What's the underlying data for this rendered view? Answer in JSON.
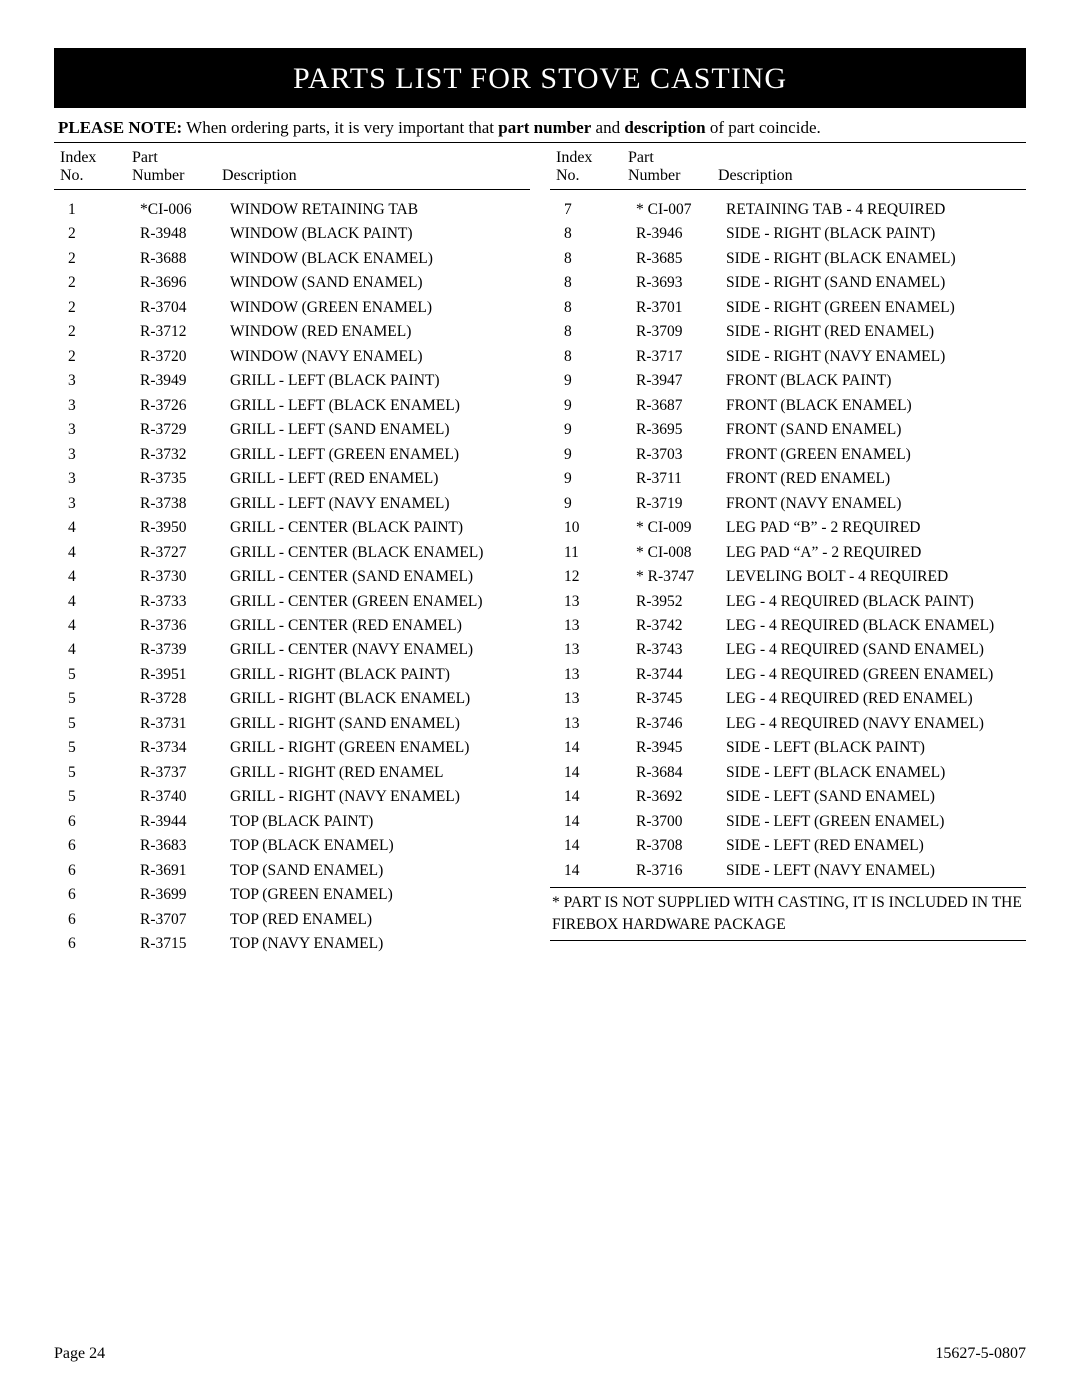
{
  "title": "PARTS LIST FOR STOVE CASTING",
  "note": {
    "prefix_bold": "PLEASE NOTE:",
    "mid1": " When ordering parts, it is very important that ",
    "bold1": "part number",
    "mid2": " and ",
    "bold2": "description",
    "suffix": " of part coincide."
  },
  "headers": {
    "index_l1": "Index",
    "index_l2": "No.",
    "part_l1": "Part",
    "part_l2": "Number",
    "desc": "Description"
  },
  "left_rows": [
    {
      "idx": "1",
      "part": "*CI-006",
      "desc": "WINDOW RETAINING TAB"
    },
    {
      "idx": "2",
      "part": "R-3948",
      "desc": "WINDOW (BLACK PAINT)"
    },
    {
      "idx": "2",
      "part": "R-3688",
      "desc": "WINDOW (BLACK ENAMEL)"
    },
    {
      "idx": "2",
      "part": "R-3696",
      "desc": "WINDOW (SAND ENAMEL)"
    },
    {
      "idx": "2",
      "part": "R-3704",
      "desc": "WINDOW (GREEN ENAMEL)"
    },
    {
      "idx": "2",
      "part": "R-3712",
      "desc": "WINDOW (RED ENAMEL)"
    },
    {
      "idx": "2",
      "part": "R-3720",
      "desc": "WINDOW (NAVY ENAMEL)"
    },
    {
      "idx": "3",
      "part": "R-3949",
      "desc": "GRILL - LEFT (BLACK PAINT)"
    },
    {
      "idx": "3",
      "part": "R-3726",
      "desc": "GRILL - LEFT (BLACK ENAMEL)"
    },
    {
      "idx": "3",
      "part": "R-3729",
      "desc": "GRILL - LEFT (SAND ENAMEL)"
    },
    {
      "idx": "3",
      "part": "R-3732",
      "desc": "GRILL - LEFT (GREEN ENAMEL)"
    },
    {
      "idx": "3",
      "part": "R-3735",
      "desc": "GRILL - LEFT (RED ENAMEL)"
    },
    {
      "idx": "3",
      "part": "R-3738",
      "desc": "GRILL - LEFT (NAVY ENAMEL)"
    },
    {
      "idx": "4",
      "part": "R-3950",
      "desc": "GRILL - CENTER (BLACK PAINT)"
    },
    {
      "idx": "4",
      "part": "R-3727",
      "desc": "GRILL - CENTER (BLACK ENAMEL)"
    },
    {
      "idx": "4",
      "part": "R-3730",
      "desc": "GRILL - CENTER (SAND ENAMEL)"
    },
    {
      "idx": "4",
      "part": "R-3733",
      "desc": "GRILL - CENTER (GREEN ENAMEL)"
    },
    {
      "idx": "4",
      "part": "R-3736",
      "desc": "GRILL - CENTER (RED ENAMEL)"
    },
    {
      "idx": "4",
      "part": "R-3739",
      "desc": "GRILL - CENTER (NAVY ENAMEL)"
    },
    {
      "idx": "5",
      "part": "R-3951",
      "desc": "GRILL - RIGHT (BLACK PAINT)"
    },
    {
      "idx": "5",
      "part": "R-3728",
      "desc": "GRILL - RIGHT (BLACK ENAMEL)"
    },
    {
      "idx": "5",
      "part": "R-3731",
      "desc": "GRILL - RIGHT (SAND ENAMEL)"
    },
    {
      "idx": "5",
      "part": "R-3734",
      "desc": "GRILL - RIGHT (GREEN ENAMEL)"
    },
    {
      "idx": "5",
      "part": "R-3737",
      "desc": "GRILL - RIGHT (RED ENAMEL"
    },
    {
      "idx": "5",
      "part": "R-3740",
      "desc": "GRILL - RIGHT (NAVY ENAMEL)"
    },
    {
      "idx": "6",
      "part": "R-3944",
      "desc": "TOP (BLACK PAINT)"
    },
    {
      "idx": "6",
      "part": "R-3683",
      "desc": "TOP (BLACK ENAMEL)"
    },
    {
      "idx": "6",
      "part": "R-3691",
      "desc": "TOP (SAND ENAMEL)"
    },
    {
      "idx": "6",
      "part": "R-3699",
      "desc": "TOP (GREEN ENAMEL)"
    },
    {
      "idx": "6",
      "part": "R-3707",
      "desc": "TOP (RED ENAMEL)"
    },
    {
      "idx": "6",
      "part": "R-3715",
      "desc": "TOP (NAVY ENAMEL)"
    }
  ],
  "right_rows": [
    {
      "idx": "7",
      "part": "* CI-007",
      "desc": "RETAINING TAB - 4 REQUIRED"
    },
    {
      "idx": "8",
      "part": "R-3946",
      "desc": "SIDE - RIGHT (BLACK PAINT)"
    },
    {
      "idx": "8",
      "part": "R-3685",
      "desc": "SIDE - RIGHT (BLACK ENAMEL)"
    },
    {
      "idx": "8",
      "part": "R-3693",
      "desc": "SIDE - RIGHT (SAND ENAMEL)"
    },
    {
      "idx": "8",
      "part": "R-3701",
      "desc": "SIDE - RIGHT (GREEN ENAMEL)"
    },
    {
      "idx": "8",
      "part": "R-3709",
      "desc": "SIDE - RIGHT (RED ENAMEL)"
    },
    {
      "idx": "8",
      "part": "R-3717",
      "desc": "SIDE - RIGHT (NAVY ENAMEL)"
    },
    {
      "idx": "9",
      "part": "R-3947",
      "desc": "FRONT (BLACK PAINT)"
    },
    {
      "idx": "9",
      "part": "R-3687",
      "desc": "FRONT (BLACK ENAMEL)"
    },
    {
      "idx": "9",
      "part": "R-3695",
      "desc": "FRONT (SAND ENAMEL)"
    },
    {
      "idx": "9",
      "part": "R-3703",
      "desc": "FRONT (GREEN ENAMEL)"
    },
    {
      "idx": "9",
      "part": "R-3711",
      "desc": "FRONT (RED ENAMEL)"
    },
    {
      "idx": "9",
      "part": "R-3719",
      "desc": "FRONT (NAVY ENAMEL)"
    },
    {
      "idx": "10",
      "part": "* CI-009",
      "desc": "LEG PAD “B” - 2 REQUIRED"
    },
    {
      "idx": "11",
      "part": "* CI-008",
      "desc": "LEG PAD “A” - 2 REQUIRED"
    },
    {
      "idx": "12",
      "part": "* R-3747",
      "desc": "LEVELING BOLT - 4 REQUIRED"
    },
    {
      "idx": "13",
      "part": "R-3952",
      "desc": "LEG - 4 REQUIRED (BLACK PAINT)"
    },
    {
      "idx": "13",
      "part": "R-3742",
      "desc": "LEG - 4 REQUIRED (BLACK ENAMEL)"
    },
    {
      "idx": "13",
      "part": "R-3743",
      "desc": "LEG - 4 REQUIRED (SAND ENAMEL)"
    },
    {
      "idx": "13",
      "part": "R-3744",
      "desc": "LEG - 4 REQUIRED (GREEN ENAMEL)"
    },
    {
      "idx": "13",
      "part": "R-3745",
      "desc": "LEG - 4 REQUIRED (RED ENAMEL)"
    },
    {
      "idx": "13",
      "part": "R-3746",
      "desc": "LEG - 4 REQUIRED (NAVY ENAMEL)"
    },
    {
      "idx": "14",
      "part": "R-3945",
      "desc": "SIDE - LEFT (BLACK PAINT)"
    },
    {
      "idx": "14",
      "part": "R-3684",
      "desc": "SIDE - LEFT (BLACK ENAMEL)"
    },
    {
      "idx": "14",
      "part": "R-3692",
      "desc": "SIDE - LEFT (SAND ENAMEL)"
    },
    {
      "idx": "14",
      "part": "R-3700",
      "desc": "SIDE - LEFT (GREEN ENAMEL)"
    },
    {
      "idx": "14",
      "part": "R-3708",
      "desc": "SIDE - LEFT (RED ENAMEL)"
    },
    {
      "idx": "14",
      "part": "R-3716",
      "desc": "SIDE - LEFT (NAVY ENAMEL)"
    }
  ],
  "footnote": "* PART IS NOT SUPPLIED WITH CASTING, IT IS  INCLUDED IN THE FIREBOX HARDWARE PACKAGE",
  "footer": {
    "page": "Page 24",
    "doc": "15627-5-0807"
  }
}
